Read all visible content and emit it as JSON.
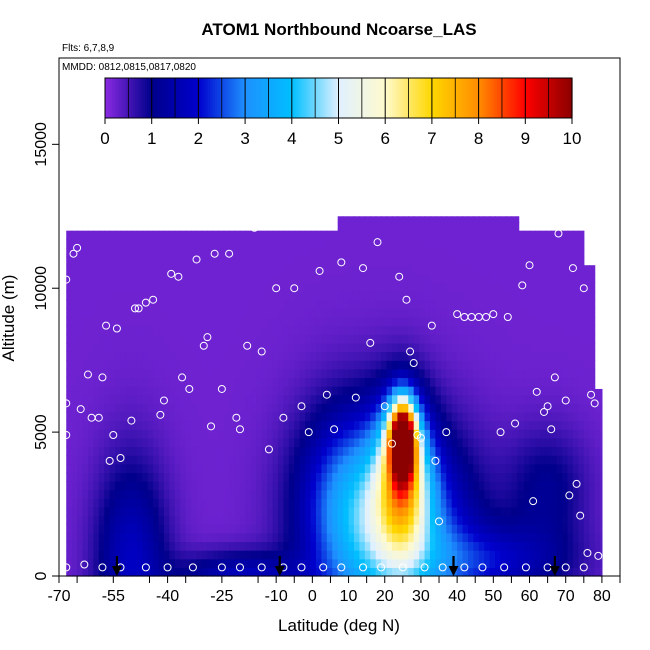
{
  "chart_data": {
    "type": "heatmap",
    "title": "ATOM1 Northbound Ncoarse_LAS",
    "annotations": [
      "Flts: 6,7,8,9",
      "MMDD: 0812,0815,0817,0820"
    ],
    "xlabel": "Latitude (deg N)",
    "ylabel": "Altitude (m)",
    "xlim": [
      -70,
      85
    ],
    "ylim": [
      0,
      18000
    ],
    "x_ticks": [
      -70,
      -55,
      -40,
      -25,
      -10,
      0,
      10,
      20,
      30,
      40,
      50,
      60,
      70,
      80
    ],
    "x_tick_labels": [
      "-70",
      "-55",
      "-40",
      "-25",
      "-10",
      "0",
      "10",
      "20",
      "30",
      "40",
      "50",
      "60",
      "70",
      "80"
    ],
    "y_ticks": [
      0,
      5000,
      10000,
      15000
    ],
    "y_tick_labels": [
      "0",
      "5000",
      "10000",
      "15000"
    ],
    "colorbar": {
      "min": 0,
      "max": 10,
      "ticks": [
        0,
        1,
        2,
        3,
        4,
        5,
        6,
        7,
        8,
        9,
        10
      ],
      "tick_labels": [
        "0",
        "1",
        "2",
        "3",
        "4",
        "5",
        "6",
        "7",
        "8",
        "9",
        "10"
      ],
      "colors": [
        "#8a2be2",
        "#00008b",
        "#0000cd",
        "#1e90ff",
        "#00bfff",
        "#e0f0ff",
        "#fffacd",
        "#ffd700",
        "#ff8c00",
        "#ff0000",
        "#8b0000"
      ]
    },
    "coverage": [
      {
        "x0": -68,
        "x1": 7,
        "y_top": 12000
      },
      {
        "x0": 7,
        "x1": 57,
        "y_top": 12500
      },
      {
        "x0": 57,
        "x1": 75,
        "y_top": 12000
      },
      {
        "x0": 75,
        "x1": 78,
        "y_top": 10800
      },
      {
        "x0": 78,
        "x1": 80,
        "y_top": 6500
      }
    ],
    "background_value": 0.2,
    "features": [
      {
        "x": -50,
        "y": 500,
        "sx": 7,
        "sy": 2500,
        "value": 1.6
      },
      {
        "x": -20,
        "y": 0,
        "sx": 12,
        "sy": 600,
        "value": 1.5
      },
      {
        "x": 22,
        "y": 1500,
        "sx": 14,
        "sy": 2500,
        "value": 3.8
      },
      {
        "x": 10,
        "y": 3000,
        "sx": 10,
        "sy": 2200,
        "value": 1.4
      },
      {
        "x": 25,
        "y": 4800,
        "sx": 2.5,
        "sy": 900,
        "value": 8.8
      },
      {
        "x": 25,
        "y": 3500,
        "sx": 5,
        "sy": 1800,
        "value": 4.5
      },
      {
        "x": 50,
        "y": 500,
        "sx": 15,
        "sy": 900,
        "value": 1.4
      },
      {
        "x": 65,
        "y": 3000,
        "sx": 8,
        "sy": 1500,
        "value": 0.9
      }
    ],
    "observations": [
      [
        -68,
        6000
      ],
      [
        -68,
        10300
      ],
      [
        -66,
        11200
      ],
      [
        -65,
        11400
      ],
      [
        -68,
        4900
      ],
      [
        -64,
        5800
      ],
      [
        -62,
        7000
      ],
      [
        -61,
        5500
      ],
      [
        -59,
        5500
      ],
      [
        -58,
        6900
      ],
      [
        -57,
        8700
      ],
      [
        -56,
        4000
      ],
      [
        -55,
        4900
      ],
      [
        -54,
        8600
      ],
      [
        -53,
        4100
      ],
      [
        -50,
        5400
      ],
      [
        -49,
        9300
      ],
      [
        -48,
        9300
      ],
      [
        -46,
        9500
      ],
      [
        -44,
        9600
      ],
      [
        -42,
        5600
      ],
      [
        -41,
        6100
      ],
      [
        -39,
        10500
      ],
      [
        -37,
        10400
      ],
      [
        -36,
        6900
      ],
      [
        -34,
        6500
      ],
      [
        -32,
        11000
      ],
      [
        -30,
        8000
      ],
      [
        -29,
        8300
      ],
      [
        -28,
        5200
      ],
      [
        -27,
        11200
      ],
      [
        -25,
        6500
      ],
      [
        -23,
        11200
      ],
      [
        -21,
        5500
      ],
      [
        -20,
        5100
      ],
      [
        -18,
        8000
      ],
      [
        -16,
        12100
      ],
      [
        -14,
        7800
      ],
      [
        -12,
        4400
      ],
      [
        -10,
        10000
      ],
      [
        -8,
        5500
      ],
      [
        -5,
        10000
      ],
      [
        -3,
        5900
      ],
      [
        -1,
        5000
      ],
      [
        2,
        10600
      ],
      [
        4,
        6300
      ],
      [
        6,
        5100
      ],
      [
        8,
        10900
      ],
      [
        12,
        6200
      ],
      [
        14,
        10700
      ],
      [
        16,
        8100
      ],
      [
        18,
        11600
      ],
      [
        20,
        5900
      ],
      [
        22,
        4600
      ],
      [
        24,
        10400
      ],
      [
        26,
        9600
      ],
      [
        27,
        7800
      ],
      [
        28,
        7400
      ],
      [
        29,
        4900
      ],
      [
        30,
        4800
      ],
      [
        33,
        8700
      ],
      [
        34,
        4000
      ],
      [
        35,
        1900
      ],
      [
        37,
        5000
      ],
      [
        40,
        9100
      ],
      [
        42,
        9000
      ],
      [
        44,
        9000
      ],
      [
        46,
        9000
      ],
      [
        48,
        9000
      ],
      [
        50,
        9100
      ],
      [
        52,
        5000
      ],
      [
        54,
        9000
      ],
      [
        56,
        5300
      ],
      [
        58,
        10100
      ],
      [
        60,
        10800
      ],
      [
        61,
        2600
      ],
      [
        62,
        6400
      ],
      [
        64,
        5700
      ],
      [
        65,
        5900
      ],
      [
        66,
        5100
      ],
      [
        67,
        6900
      ],
      [
        68,
        11900
      ],
      [
        70,
        6100
      ],
      [
        71,
        2800
      ],
      [
        72,
        10700
      ],
      [
        73,
        3200
      ],
      [
        74,
        2100
      ],
      [
        75,
        10000
      ],
      [
        76,
        800
      ],
      [
        77,
        6300
      ],
      [
        78,
        6000
      ],
      [
        79,
        700
      ],
      [
        -68,
        300
      ],
      [
        -63,
        400
      ],
      [
        -58,
        300
      ],
      [
        -53,
        300
      ],
      [
        -46,
        300
      ],
      [
        -40,
        300
      ],
      [
        -33,
        300
      ],
      [
        -25,
        300
      ],
      [
        -20,
        300
      ],
      [
        -14,
        300
      ],
      [
        -8,
        300
      ],
      [
        -3,
        300
      ],
      [
        3,
        300
      ],
      [
        8,
        300
      ],
      [
        14,
        300
      ],
      [
        19,
        300
      ],
      [
        25,
        300
      ],
      [
        31,
        300
      ],
      [
        36,
        300
      ],
      [
        42,
        300
      ],
      [
        47,
        300
      ],
      [
        53,
        300
      ],
      [
        59,
        300
      ],
      [
        65,
        300
      ],
      [
        70,
        300
      ],
      [
        75,
        300
      ]
    ],
    "arrows_x": [
      -54,
      -9,
      39,
      67
    ]
  }
}
